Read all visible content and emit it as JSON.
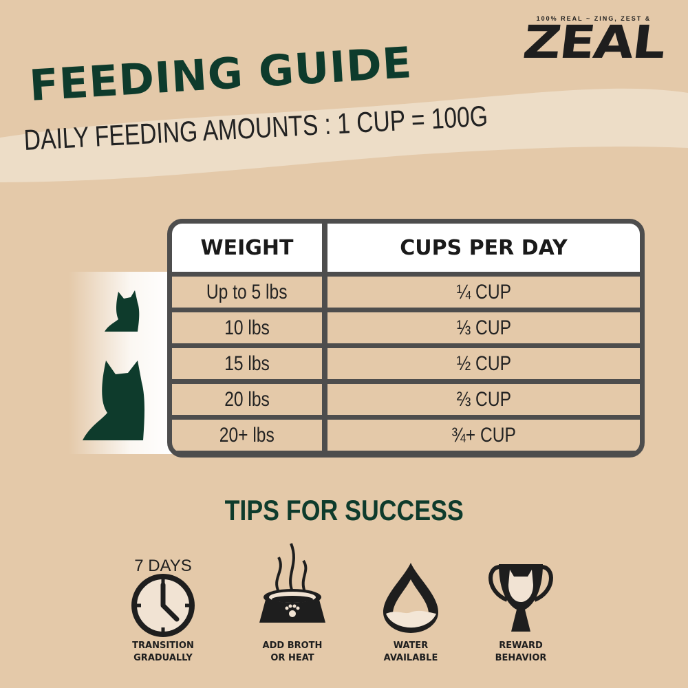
{
  "brand": {
    "tagline": "100% REAL ~ ZING, ZEST &",
    "logo": "ZEAL"
  },
  "header": {
    "title": "FEEDING GUIDE",
    "subtitle": "DAILY FEEDING AMOUNTS : 1 CUP = 100G"
  },
  "table": {
    "columns": [
      "WEIGHT",
      "CUPS PER DAY"
    ],
    "rows": [
      [
        "Up to 5 lbs",
        "¼ CUP"
      ],
      [
        "10 lbs",
        "⅓ CUP"
      ],
      [
        "15 lbs",
        "½ CUP"
      ],
      [
        "20 lbs",
        "⅔ CUP"
      ],
      [
        "20+ lbs",
        "¾+ CUP"
      ]
    ]
  },
  "tips": {
    "title": "TIPS FOR SUCCESS",
    "items": [
      {
        "icon": "clock-icon",
        "badge": "7 DAYS",
        "line1": "TRANSITION",
        "line2": "GRADUALLY"
      },
      {
        "icon": "steaming-bowl-icon",
        "line1": "ADD BROTH",
        "line2": "OR HEAT"
      },
      {
        "icon": "water-drop-icon",
        "line1": "WATER",
        "line2": "AVAILABLE"
      },
      {
        "icon": "trophy-icon",
        "line1": "REWARD",
        "line2": "BEHAVIOR"
      }
    ]
  },
  "colors": {
    "background": "#e4c9a9",
    "green": "#0e3b2c",
    "border": "#4d4d4d",
    "ink": "#1e1e1e"
  }
}
